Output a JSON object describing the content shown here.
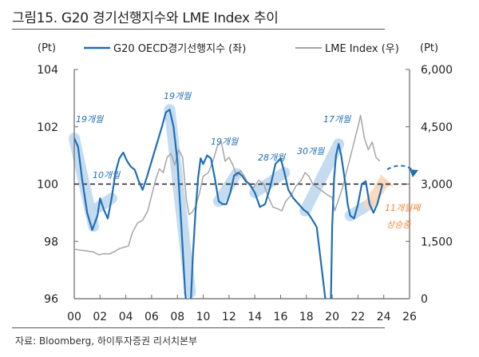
{
  "title": "그림15. G20 경기선행지수와 LME Index 추이",
  "source": "자료: Bloomberg, 하이투자증권 리서치본부",
  "colors": {
    "oecd_line": "#1f6fb5",
    "lme_line": "#a6a6a6",
    "highlight_blue": "#bcd6ee",
    "highlight_orange": "#fbd5b6",
    "annotation_blue": "#1f6fb5",
    "annotation_orange": "#f08a3c",
    "axis": "#666666",
    "reference_line": "#222222"
  },
  "chart_data": {
    "type": "line",
    "title": "그림15. G20 경기선행지수와 LME Index 추이",
    "left_unit": "(Pt)",
    "right_unit": "(Pt)",
    "xlim": [
      2000,
      2026
    ],
    "ylim_left": [
      96,
      104
    ],
    "ylim_right": [
      0,
      6000
    ],
    "x_ticks": [
      "00",
      "02",
      "04",
      "06",
      "08",
      "10",
      "12",
      "14",
      "16",
      "18",
      "20",
      "22",
      "24",
      "26"
    ],
    "y_ticks_left": [
      "96",
      "98",
      "100",
      "102",
      "104"
    ],
    "y_ticks_right": [
      "0",
      "1,500",
      "3,000",
      "4,500",
      "6,000"
    ],
    "reference_line": {
      "axis": "left",
      "value": 100,
      "style": "dashed"
    },
    "legend": [
      {
        "name": "G20 OECD경기선행지수 (좌)",
        "color": "#1f6fb5"
      },
      {
        "name": "LME Index (우)",
        "color": "#a6a6a6"
      }
    ],
    "legend_position": "top",
    "series": [
      {
        "name": "G20 OECD경기선행지수 (좌)",
        "axis": "left",
        "x": [
          2000.0,
          2000.3,
          2000.6,
          2001.0,
          2001.4,
          2001.8,
          2002.0,
          2002.3,
          2002.6,
          2002.9,
          2003.2,
          2003.5,
          2003.8,
          2004.1,
          2004.4,
          2004.7,
          2005.0,
          2005.3,
          2005.6,
          2006.0,
          2006.4,
          2006.8,
          2007.1,
          2007.4,
          2007.7,
          2008.0,
          2008.3,
          2008.6,
          2008.8,
          2009.0,
          2009.2,
          2009.4,
          2009.6,
          2009.8,
          2010.0,
          2010.3,
          2010.6,
          2010.9,
          2011.2,
          2011.5,
          2011.8,
          2012.1,
          2012.4,
          2012.7,
          2013.0,
          2013.3,
          2013.6,
          2014.0,
          2014.4,
          2014.8,
          2015.2,
          2015.6,
          2016.0,
          2016.3,
          2016.6,
          2017.0,
          2017.4,
          2017.8,
          2018.1,
          2018.4,
          2018.8,
          2019.2,
          2019.6,
          2019.9,
          2020.0,
          2020.15,
          2020.3,
          2020.5,
          2020.7,
          2021.0,
          2021.2,
          2021.4,
          2021.7,
          2022.0,
          2022.3,
          2022.6,
          2022.9,
          2023.2,
          2023.5,
          2023.9
        ],
        "values": [
          101.6,
          101.3,
          100.2,
          99.0,
          98.4,
          98.9,
          99.5,
          99.1,
          98.8,
          99.5,
          100.4,
          100.9,
          101.1,
          100.8,
          100.6,
          100.5,
          100.1,
          99.8,
          100.2,
          100.8,
          101.4,
          102.0,
          102.5,
          102.6,
          102.0,
          100.8,
          98.6,
          96.2,
          95.5,
          95.5,
          97.5,
          99.0,
          100.2,
          100.9,
          100.7,
          101.0,
          100.9,
          100.2,
          99.4,
          99.3,
          99.3,
          99.7,
          100.3,
          100.4,
          100.3,
          100.1,
          100.0,
          99.7,
          99.2,
          99.3,
          99.9,
          100.7,
          100.9,
          100.4,
          99.8,
          99.5,
          99.3,
          99.1,
          99.0,
          98.8,
          98.5,
          97.0,
          95.5,
          96.0,
          98.5,
          100.2,
          101.0,
          101.4,
          101.0,
          100.1,
          99.3,
          98.9,
          98.8,
          99.3,
          100.0,
          100.1,
          99.3,
          99.0,
          99.3,
          100.0
        ]
      },
      {
        "name": "LME Index (우)",
        "axis": "right",
        "x": [
          2000.0,
          2000.5,
          2001.0,
          2001.5,
          2001.9,
          2002.3,
          2002.7,
          2003.1,
          2003.5,
          2003.9,
          2004.2,
          2004.5,
          2004.9,
          2005.3,
          2005.7,
          2006.0,
          2006.3,
          2006.6,
          2006.9,
          2007.2,
          2007.5,
          2007.8,
          2008.1,
          2008.4,
          2008.7,
          2008.9,
          2009.1,
          2009.4,
          2009.7,
          2010.0,
          2010.4,
          2010.8,
          2011.1,
          2011.4,
          2011.7,
          2012.0,
          2012.3,
          2012.6,
          2012.9,
          2013.2,
          2013.5,
          2013.9,
          2014.3,
          2014.7,
          2015.0,
          2015.4,
          2015.8,
          2016.1,
          2016.4,
          2016.8,
          2017.2,
          2017.6,
          2017.9,
          2018.2,
          2018.5,
          2018.9,
          2019.3,
          2019.7,
          2020.0,
          2020.2,
          2020.5,
          2020.8,
          2021.1,
          2021.4,
          2021.7,
          2022.0,
          2022.2,
          2022.5,
          2022.8,
          2023.1,
          2023.4,
          2023.7
        ],
        "values": [
          1300,
          1270,
          1250,
          1220,
          1150,
          1180,
          1170,
          1230,
          1310,
          1350,
          1380,
          1720,
          1980,
          2050,
          2300,
          2700,
          3100,
          3400,
          3300,
          3700,
          3800,
          3500,
          3900,
          3700,
          2600,
          2200,
          2250,
          2400,
          2750,
          3200,
          3300,
          3650,
          4000,
          4100,
          3600,
          3700,
          3500,
          3200,
          3350,
          3200,
          3000,
          2900,
          3100,
          3000,
          2700,
          2400,
          2350,
          2300,
          2550,
          2700,
          2950,
          3100,
          3300,
          3200,
          3000,
          2900,
          2800,
          2700,
          2650,
          2300,
          2600,
          2900,
          3300,
          3700,
          4100,
          4500,
          4800,
          4200,
          3900,
          4100,
          3700,
          3600
        ]
      }
    ],
    "highlights": [
      {
        "label": "19개월",
        "x_start": 2000.0,
        "x_end": 2001.5,
        "color": "blue"
      },
      {
        "label": "10개월",
        "x_start": 2001.9,
        "x_end": 2002.9,
        "color": "blue"
      },
      {
        "label": "19개월",
        "x_start": 2007.4,
        "x_end": 2009.0,
        "color": "blue"
      },
      {
        "label": "19개월",
        "x_start": 2011.2,
        "x_end": 2012.6,
        "color": "blue"
      },
      {
        "label": "28개월",
        "x_start": 2014.0,
        "x_end": 2016.3,
        "color": "blue"
      },
      {
        "label": "30개월",
        "x_start": 2017.9,
        "x_end": 2020.5,
        "color": "blue"
      },
      {
        "label": "17개월",
        "x_start": 2021.4,
        "x_end": 2022.9,
        "color": "blue"
      },
      {
        "label": "11개월째 상승중",
        "x_start": 2022.9,
        "x_end": 2023.9,
        "color": "orange"
      }
    ],
    "annotations": [
      {
        "text": "19개월",
        "color": "blue"
      },
      {
        "text": "10개월",
        "color": "blue"
      },
      {
        "text": "19개월",
        "color": "blue"
      },
      {
        "text": "19개월",
        "color": "blue"
      },
      {
        "text": "28개월",
        "color": "blue"
      },
      {
        "text": "30개월",
        "color": "blue"
      },
      {
        "text": "17개월",
        "color": "blue"
      },
      {
        "text": "11개월째",
        "color": "orange"
      },
      {
        "text": "상승중",
        "color": "orange"
      }
    ]
  }
}
